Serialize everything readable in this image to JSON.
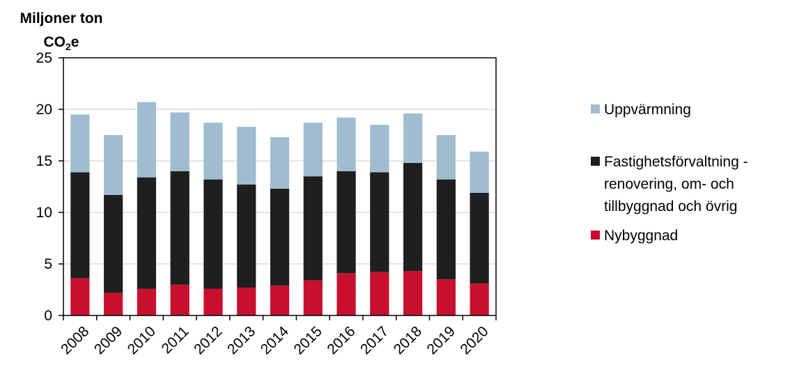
{
  "chart_data": {
    "type": "bar",
    "stacked": true,
    "title": "",
    "ylabel_line1": "Miljoner ton",
    "ylabel_co": "CO",
    "ylabel_sub": "2",
    "ylabel_e": "e",
    "xlabel": "",
    "ylim": [
      0,
      25
    ],
    "yticks": [
      0,
      5,
      10,
      15,
      20,
      25
    ],
    "grid": true,
    "legend_position": "right",
    "categories": [
      "2008",
      "2009",
      "2010",
      "2011",
      "2012",
      "2013",
      "2014",
      "2015",
      "2016",
      "2017",
      "2018",
      "2019",
      "2020"
    ],
    "series": [
      {
        "name": "Nybyggnad",
        "color": "#c8102e",
        "values": [
          3.6,
          2.2,
          2.6,
          3.0,
          2.6,
          2.7,
          2.9,
          3.4,
          4.1,
          4.2,
          4.3,
          3.5,
          3.1
        ]
      },
      {
        "name": "Fastighetsförvaltning - renovering, om- och tillbyggnad och övrig",
        "legend_lines": [
          "Fastighetsförvaltning -",
          "renovering, om- och",
          "tillbyggnad och övrig"
        ],
        "color": "#1f1f1f",
        "values": [
          10.3,
          9.5,
          10.8,
          11.0,
          10.6,
          10.0,
          9.4,
          10.1,
          9.9,
          9.7,
          10.5,
          9.7,
          8.8
        ]
      },
      {
        "name": "Uppvärmning",
        "color": "#9fbdcf",
        "values": [
          5.6,
          5.8,
          7.3,
          5.7,
          5.5,
          5.6,
          5.0,
          5.2,
          5.2,
          4.6,
          4.8,
          4.3,
          4.0
        ]
      }
    ],
    "legend_order": [
      2,
      1,
      0
    ]
  }
}
